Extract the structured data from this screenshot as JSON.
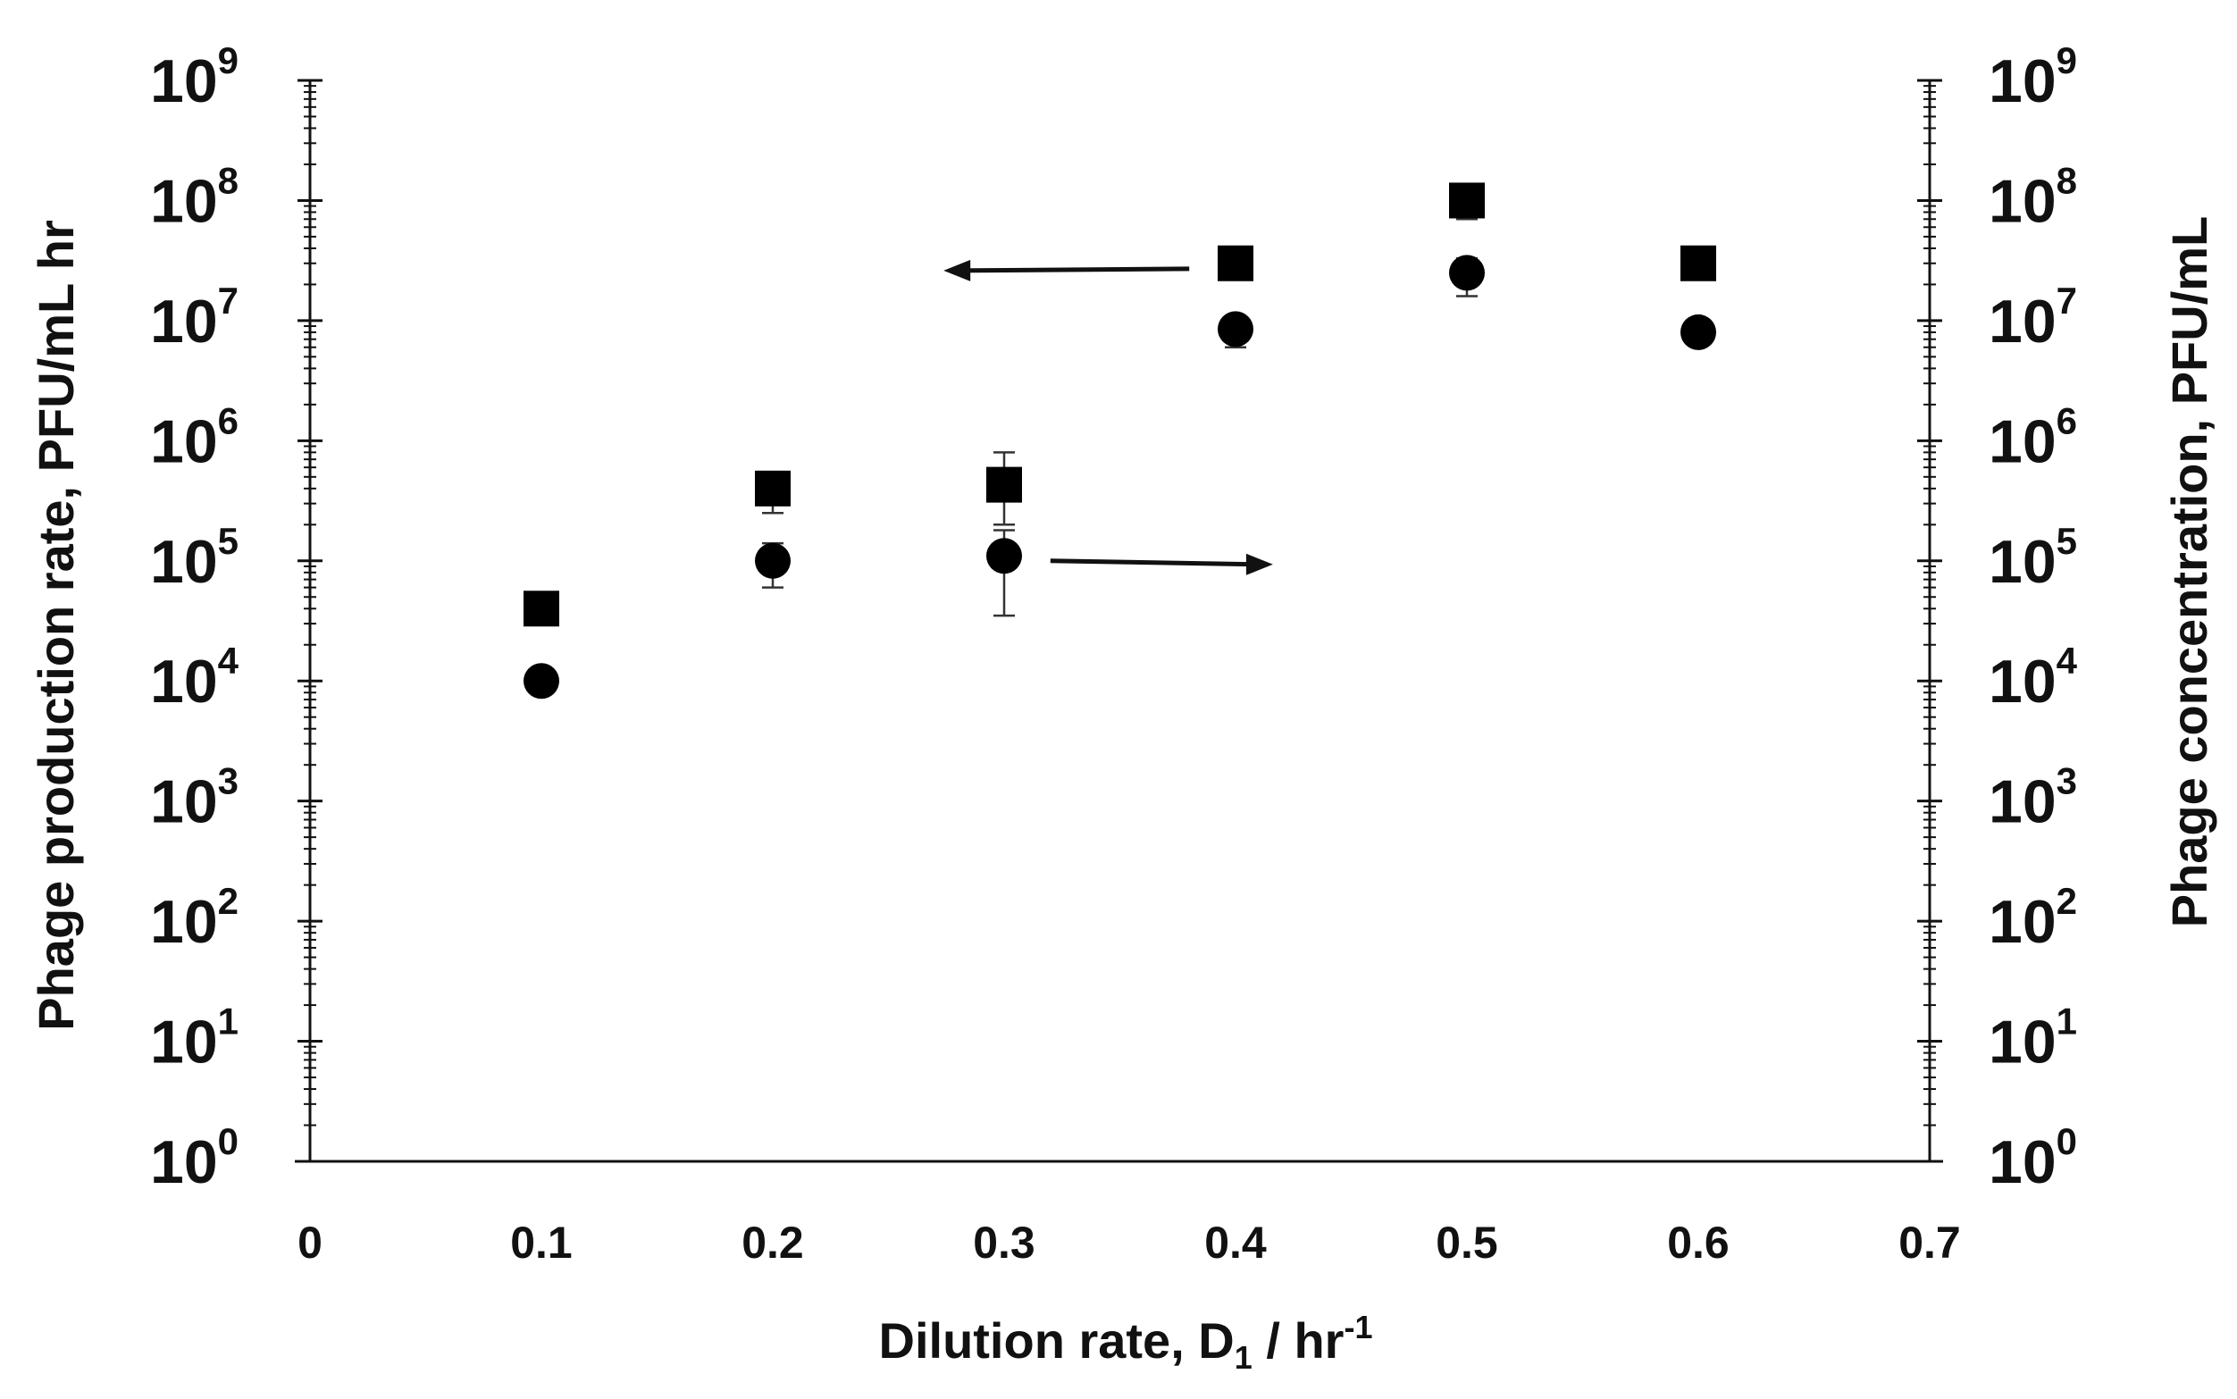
{
  "chart_data": {
    "type": "scatter",
    "xlabel": {
      "main": "Dilution rate, D",
      "sub": "1",
      "after": " / hr",
      "sup": "-1"
    },
    "ylabel_left": "Phage production rate, PFU/mL hr",
    "ylabel_right": "Phage concentration, PFU/mL",
    "xlim": [
      0,
      0.7
    ],
    "x_ticks": [
      "0",
      "0.1",
      "0.2",
      "0.3",
      "0.4",
      "0.5",
      "0.6",
      "0.7"
    ],
    "y_scale": "log",
    "ylim": [
      1,
      1000000000
    ],
    "y_ticks": [
      {
        "base": "10",
        "exp": "0"
      },
      {
        "base": "10",
        "exp": "1"
      },
      {
        "base": "10",
        "exp": "2"
      },
      {
        "base": "10",
        "exp": "3"
      },
      {
        "base": "10",
        "exp": "4"
      },
      {
        "base": "10",
        "exp": "5"
      },
      {
        "base": "10",
        "exp": "6"
      },
      {
        "base": "10",
        "exp": "7"
      },
      {
        "base": "10",
        "exp": "8"
      },
      {
        "base": "10",
        "exp": "9"
      }
    ],
    "series": [
      {
        "marker": "square",
        "axis": "left",
        "x": [
          0.1,
          0.2,
          0.3,
          0.4,
          0.5,
          0.6
        ],
        "y": [
          40000,
          400000,
          430000,
          30000000,
          100000000,
          30000000
        ],
        "err_low": [
          null,
          250000,
          200000,
          25000000,
          70000000,
          null
        ],
        "err_high": [
          null,
          500000,
          800000,
          35000000,
          120000000,
          null
        ]
      },
      {
        "marker": "circle",
        "axis": "right",
        "x": [
          0.1,
          0.2,
          0.3,
          0.4,
          0.5,
          0.6
        ],
        "y": [
          10000,
          100000,
          110000,
          8500000,
          25000000,
          8000000
        ],
        "err_low": [
          null,
          60000,
          35000,
          6000000,
          16000000,
          null
        ],
        "err_high": [
          null,
          140000,
          180000,
          11000000,
          33000000,
          null
        ]
      }
    ],
    "annotations": [
      {
        "type": "arrow",
        "direction": "left",
        "points_to": "left axis"
      },
      {
        "type": "arrow",
        "direction": "right",
        "points_to": "right axis"
      }
    ],
    "grid": false
  }
}
